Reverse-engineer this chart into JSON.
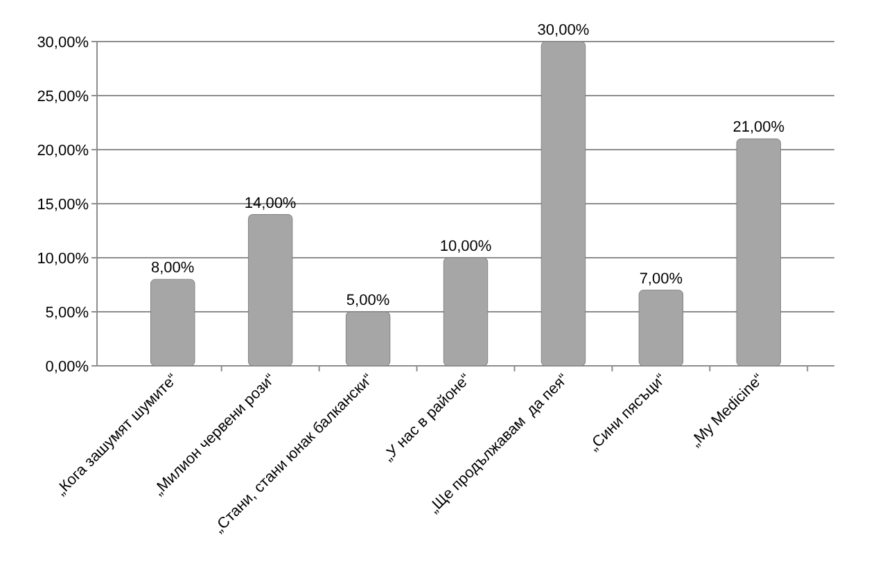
{
  "chart_data": {
    "type": "bar",
    "categories": [
      "„Кога зашумят шумите“",
      "„Милион червени рози“",
      "„Стани, стани юнак балкански“",
      "„У нас в районе“",
      "„Ще продължавам  да пея“",
      "„Сини пясъци“",
      "„My Medicine“"
    ],
    "values": [
      8,
      14,
      5,
      10,
      30,
      7,
      21
    ],
    "value_labels": [
      "8,00%",
      "14,00%",
      "5,00%",
      "10,00%",
      "30,00%",
      "7,00%",
      "21,00%"
    ],
    "color": "#a6a6a6",
    "ylim": [
      0,
      30
    ],
    "yticks": [
      {
        "value": 0,
        "label": "0,00%"
      },
      {
        "value": 5,
        "label": "5,00%"
      },
      {
        "value": 10,
        "label": "10,00%"
      },
      {
        "value": 15,
        "label": "15,00%"
      },
      {
        "value": 20,
        "label": "20,00%"
      },
      {
        "value": 25,
        "label": "25,00%"
      },
      {
        "value": 30,
        "label": "30,00%"
      }
    ],
    "grid": "y"
  }
}
